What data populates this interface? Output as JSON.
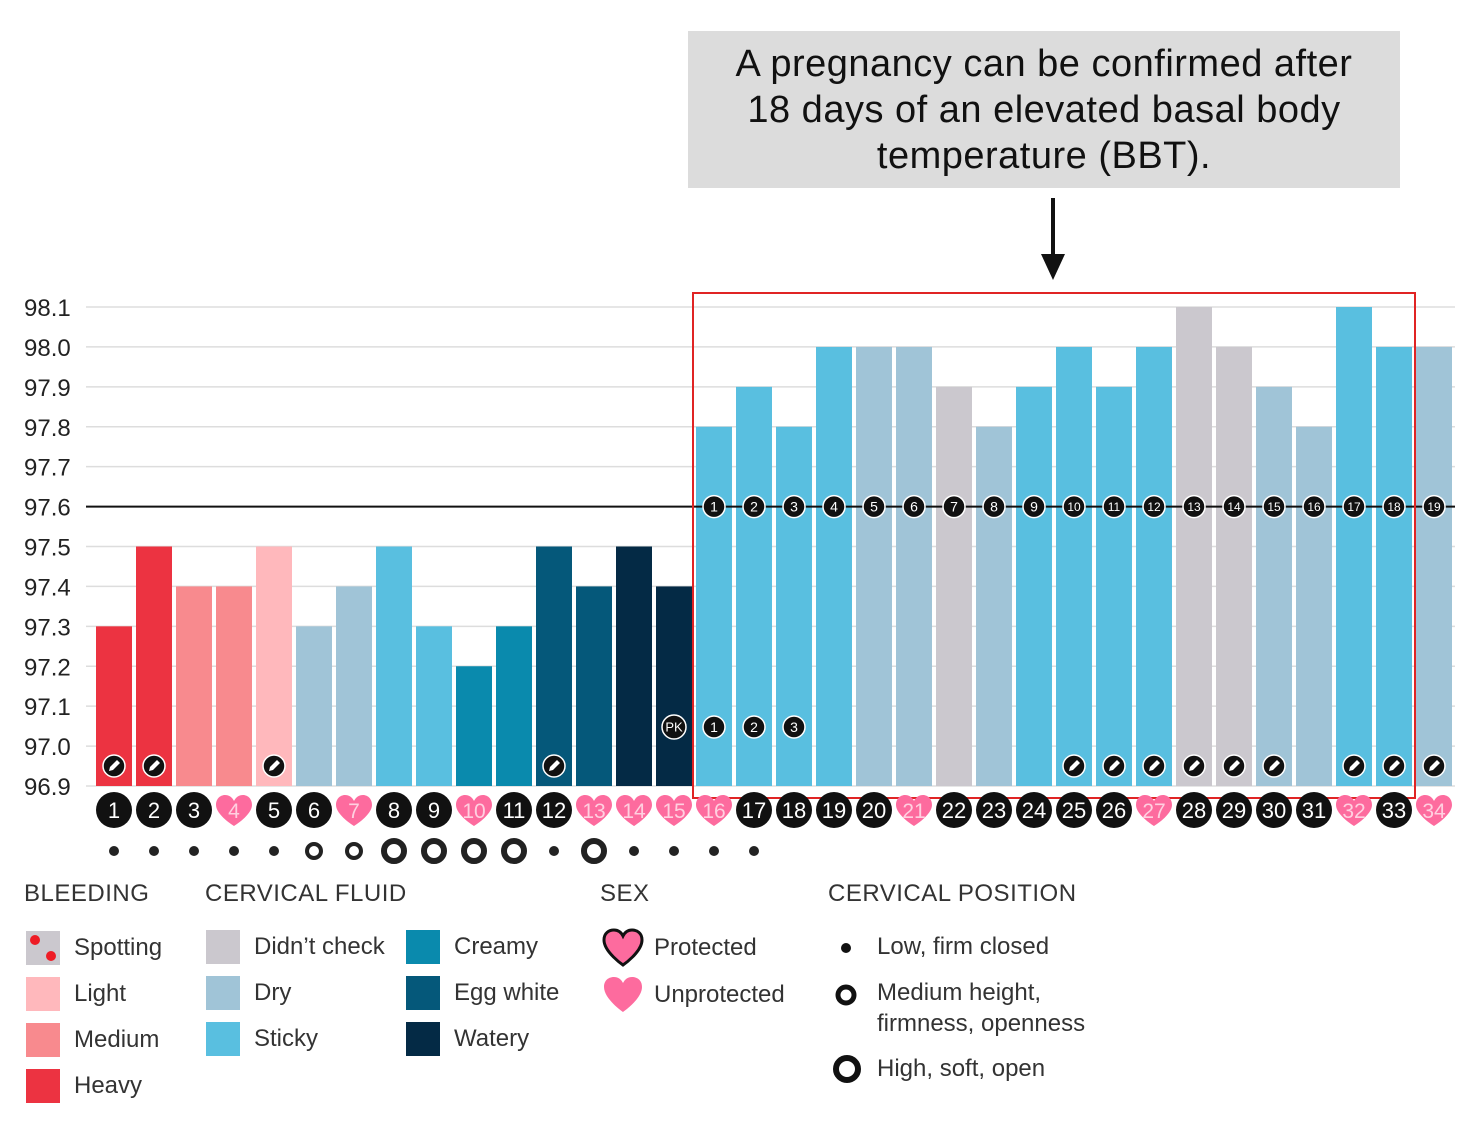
{
  "callout": {
    "lines": [
      "A pregnancy can be confirmed after",
      "18 days of an elevated basal body",
      "temperature (BBT)."
    ]
  },
  "colors": {
    "heavy": "#ec3341",
    "medium": "#f88a8e",
    "light": "#ffb8bc",
    "didnt_check": "#cbc8ce",
    "dry": "#a0c4d7",
    "sticky": "#59bfe0",
    "creamy": "#0a8aad",
    "egg_white": "#05587a",
    "watery": "#042a45",
    "heart": "#fd6b9e",
    "spotting_dot": "#ee1c25",
    "highlight_box": "#e02424"
  },
  "chart_data": {
    "type": "bar",
    "ylim": [
      96.9,
      98.1
    ],
    "yticks": [
      "98.1",
      "98.0",
      "97.9",
      "97.8",
      "97.7",
      "97.6",
      "97.5",
      "97.4",
      "97.3",
      "97.2",
      "97.1",
      "97.0",
      "96.9"
    ],
    "coverline": 97.6,
    "days": [
      "1",
      "2",
      "3",
      "4",
      "5",
      "6",
      "7",
      "8",
      "9",
      "10",
      "11",
      "12",
      "13",
      "14",
      "15",
      "16",
      "17",
      "18",
      "19",
      "20",
      "21",
      "22",
      "23",
      "24",
      "25",
      "26",
      "27",
      "28",
      "29",
      "30",
      "31",
      "32",
      "33",
      "34"
    ],
    "values": [
      97.3,
      97.5,
      97.4,
      97.4,
      97.5,
      97.3,
      97.4,
      97.5,
      97.3,
      97.2,
      97.3,
      97.5,
      97.4,
      97.5,
      97.4,
      97.8,
      97.9,
      97.8,
      98.0,
      98.0,
      98.0,
      97.9,
      97.8,
      97.9,
      98.0,
      97.9,
      98.0,
      98.1,
      98.0,
      97.9,
      97.8,
      98.1,
      98.0,
      98.0
    ],
    "fluid": [
      "heavy",
      "heavy",
      "medium",
      "medium",
      "light",
      "dry",
      "dry",
      "sticky",
      "sticky",
      "creamy",
      "creamy",
      "egg_white",
      "egg_white",
      "watery",
      "watery",
      "sticky",
      "sticky",
      "sticky",
      "sticky",
      "dry",
      "dry",
      "didnt_check",
      "dry",
      "sticky",
      "sticky",
      "sticky",
      "sticky",
      "didnt_check",
      "didnt_check",
      "dry",
      "dry",
      "sticky",
      "sticky",
      "dry"
    ],
    "day_marker": [
      "circle",
      "circle",
      "circle",
      "heart",
      "circle",
      "circle",
      "heart",
      "circle",
      "circle",
      "heart",
      "circle",
      "circle",
      "heart",
      "heart",
      "heart",
      "heart",
      "circle",
      "circle",
      "circle",
      "circle",
      "heart",
      "circle",
      "circle",
      "circle",
      "circle",
      "circle",
      "heart",
      "circle",
      "circle",
      "circle",
      "circle",
      "heart",
      "circle",
      "heart"
    ],
    "note_icon_days": [
      "1",
      "2",
      "5",
      "12",
      "25",
      "26",
      "27",
      "28",
      "29",
      "30",
      "32",
      "33",
      "34"
    ],
    "elevated_count": [
      "1",
      "2",
      "3",
      "4",
      "5",
      "6",
      "7",
      "8",
      "9",
      "10",
      "11",
      "12",
      "13",
      "14",
      "15",
      "16",
      "17",
      "18",
      "19"
    ],
    "peak_label": "PK",
    "post_peak_count": [
      "1",
      "2",
      "3"
    ],
    "cervical_position": [
      "low",
      "low",
      "low",
      "low",
      "low",
      "medium",
      "medium",
      "high",
      "high",
      "high",
      "high",
      "low",
      "high",
      "low",
      "low",
      "low",
      "low"
    ],
    "highlight_range": [
      "16",
      "33"
    ]
  },
  "legend": {
    "bleeding": {
      "title": "BLEEDING",
      "items": [
        "Spotting",
        "Light",
        "Medium",
        "Heavy"
      ]
    },
    "fluid": {
      "title": "CERVICAL FLUID",
      "items": [
        "Didn’t check",
        "Dry",
        "Sticky",
        "Creamy",
        "Egg white",
        "Watery"
      ]
    },
    "sex": {
      "title": "SEX",
      "items": [
        "Protected",
        "Unprotected"
      ]
    },
    "position": {
      "title": "CERVICAL POSITION",
      "low": "Low, firm closed",
      "medium_1": "Medium height,",
      "medium_2": "firmness, openness",
      "high": "High, soft, open"
    }
  }
}
